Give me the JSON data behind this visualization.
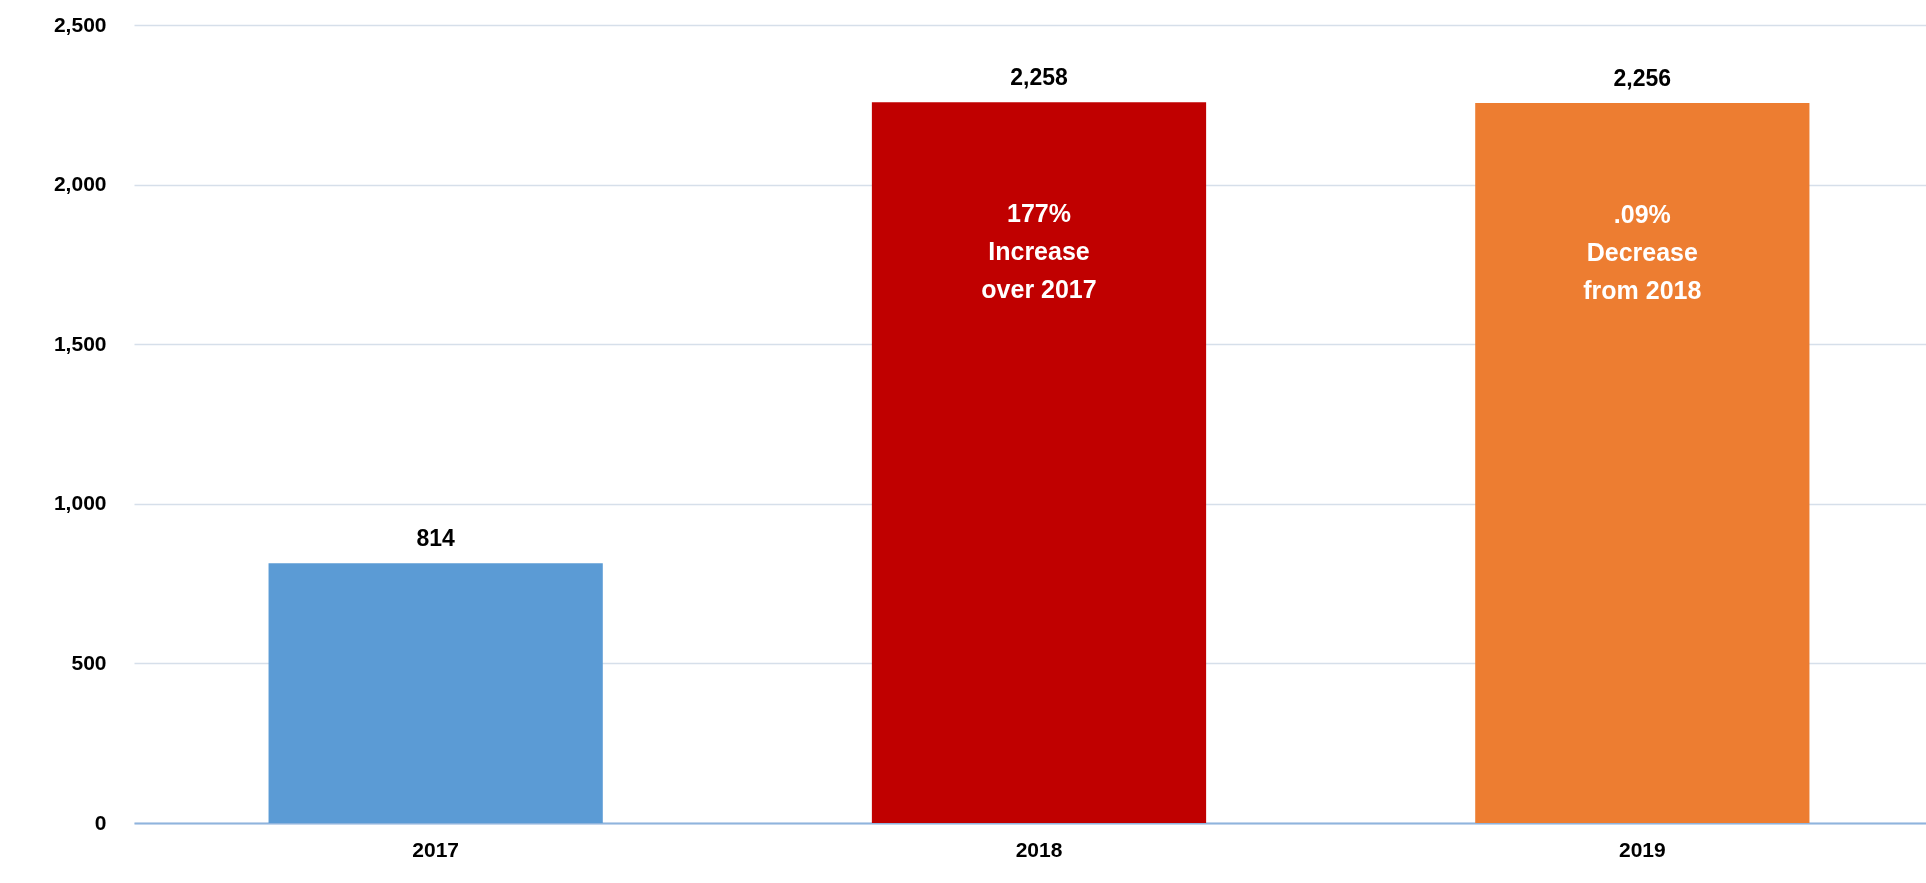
{
  "chart_data": {
    "type": "bar",
    "categories": [
      "2017",
      "2018",
      "2019"
    ],
    "values": [
      814,
      2258,
      2256
    ],
    "value_labels": [
      "814",
      "2,258",
      "2,256"
    ],
    "colors": [
      "#5b9bd5",
      "#c00000",
      "#ed7d31"
    ],
    "ylim": [
      0,
      2500
    ],
    "yticks": [
      0,
      500,
      {
        "value": 1000,
        "label": "1,000"
      },
      {
        "value": 1500,
        "label": "1,500"
      },
      {
        "value": 2000,
        "label": "2,000"
      },
      {
        "value": 2500,
        "label": "2,500"
      }
    ],
    "grid": "y",
    "annotations": [
      "177%\nIncrease\nover 2017",
      ".09%\nDecrease\nfrom 2018"
    ]
  }
}
